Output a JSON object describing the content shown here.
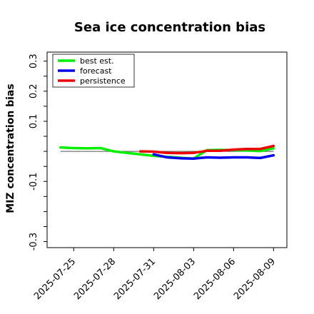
{
  "chart_data": {
    "type": "line",
    "title": "Sea ice concentration bias",
    "xlabel": "",
    "ylabel": "MIZ concentration bias",
    "xlim": [
      "2025-07-23",
      "2025-08-10"
    ],
    "ylim": [
      -0.32,
      0.33
    ],
    "grid": false,
    "legend_position": "top-left",
    "x_ticks": [
      {
        "label": "2025-07-25",
        "value": "2025-07-25",
        "color": "#000000"
      },
      {
        "label": "2025-07-28",
        "value": "2025-07-28",
        "color": "#000000"
      },
      {
        "label": "2025-07-31",
        "value": "2025-07-31",
        "color": "#228B22"
      },
      {
        "label": "2025-08-03",
        "value": "2025-08-03",
        "color": "#000000"
      },
      {
        "label": "2025-08-06",
        "value": "2025-08-06",
        "color": "#000000"
      },
      {
        "label": "2025-08-09",
        "value": "2025-08-09",
        "color": "#000000"
      }
    ],
    "y_ticks": [
      {
        "label": "0.3",
        "value": 0.3
      },
      {
        "label": "",
        "value": 0.25
      },
      {
        "label": "0.2",
        "value": 0.2
      },
      {
        "label": "",
        "value": 0.15
      },
      {
        "label": "0.1",
        "value": 0.1
      },
      {
        "label": "",
        "value": 0.05
      },
      {
        "label": "",
        "value": 0.0
      },
      {
        "label": "",
        "value": -0.05
      },
      {
        "label": "-0.1",
        "value": -0.1
      },
      {
        "label": "",
        "value": -0.15
      },
      {
        "label": "",
        "value": -0.2
      },
      {
        "label": "",
        "value": -0.25
      },
      {
        "label": "-0.3",
        "value": -0.3
      }
    ],
    "reference_line": {
      "y": 0.0,
      "from": "2025-07-24",
      "to": "2025-08-09",
      "color": "#555555"
    },
    "series": [
      {
        "name": "best est.",
        "color": "#00ee00",
        "x": [
          "2025-07-24",
          "2025-07-25",
          "2025-07-26",
          "2025-07-27",
          "2025-07-28",
          "2025-07-29",
          "2025-07-30",
          "2025-07-31",
          "2025-08-01",
          "2025-08-02",
          "2025-08-03",
          "2025-08-04",
          "2025-08-05",
          "2025-08-06",
          "2025-08-07",
          "2025-08-08",
          "2025-08-09"
        ],
        "y": [
          0.013,
          0.011,
          0.01,
          0.011,
          0.0,
          -0.005,
          -0.01,
          -0.015,
          -0.018,
          -0.021,
          -0.024,
          0.004,
          0.005,
          0.004,
          0.003,
          0.001,
          0.01
        ]
      },
      {
        "name": "forecast",
        "color": "#0000ee",
        "x": [
          "2025-07-31",
          "2025-08-01",
          "2025-08-02",
          "2025-08-03",
          "2025-08-04",
          "2025-08-05",
          "2025-08-06",
          "2025-08-07",
          "2025-08-08",
          "2025-08-09"
        ],
        "y": [
          -0.01,
          -0.02,
          -0.023,
          -0.024,
          -0.02,
          -0.021,
          -0.02,
          -0.02,
          -0.022,
          -0.013
        ]
      },
      {
        "name": "persistence",
        "color": "#ee0000",
        "x": [
          "2025-07-30",
          "2025-07-31",
          "2025-08-01",
          "2025-08-02",
          "2025-08-03",
          "2025-08-04",
          "2025-08-05",
          "2025-08-06",
          "2025-08-07",
          "2025-08-08",
          "2025-08-09"
        ],
        "y": [
          0.0,
          -0.001,
          -0.005,
          -0.006,
          -0.005,
          0.002,
          0.002,
          0.006,
          0.008,
          0.008,
          0.018
        ]
      }
    ]
  }
}
